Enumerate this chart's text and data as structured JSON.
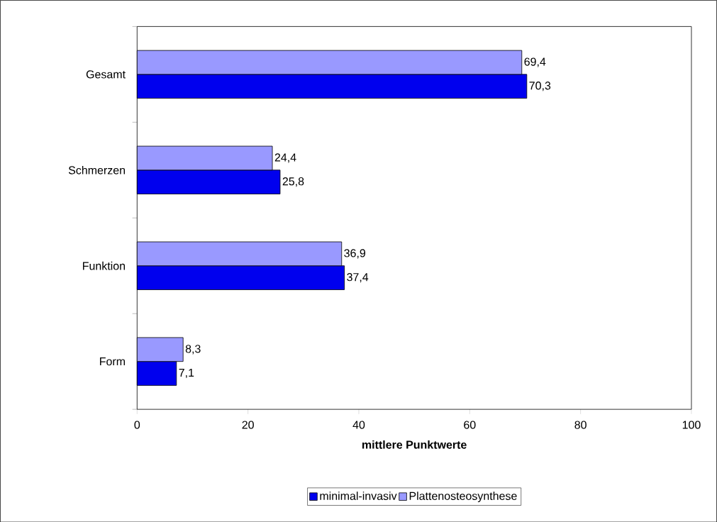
{
  "chart_data": {
    "type": "bar",
    "orientation": "horizontal",
    "categories": [
      "Gesamt",
      "Schmerzen",
      "Funktion",
      "Form"
    ],
    "series": [
      {
        "name": "minimal-invasiv",
        "color": "#0000ee",
        "values": [
          70.3,
          25.8,
          37.4,
          7.1
        ],
        "value_labels": [
          "70,3",
          "25,8",
          "37,4",
          "7,1"
        ]
      },
      {
        "name": "Plattenosteosynthese",
        "color": "#9999ff",
        "values": [
          69.4,
          24.4,
          36.9,
          8.3
        ],
        "value_labels": [
          "69,4",
          "24,4",
          "36,9",
          "8,3"
        ]
      }
    ],
    "xlabel": "mittlere Punktwerte",
    "xlim": [
      0,
      100
    ],
    "xticks": [
      0,
      20,
      40,
      60,
      80,
      100
    ],
    "grid": false,
    "legend": "bottom"
  }
}
